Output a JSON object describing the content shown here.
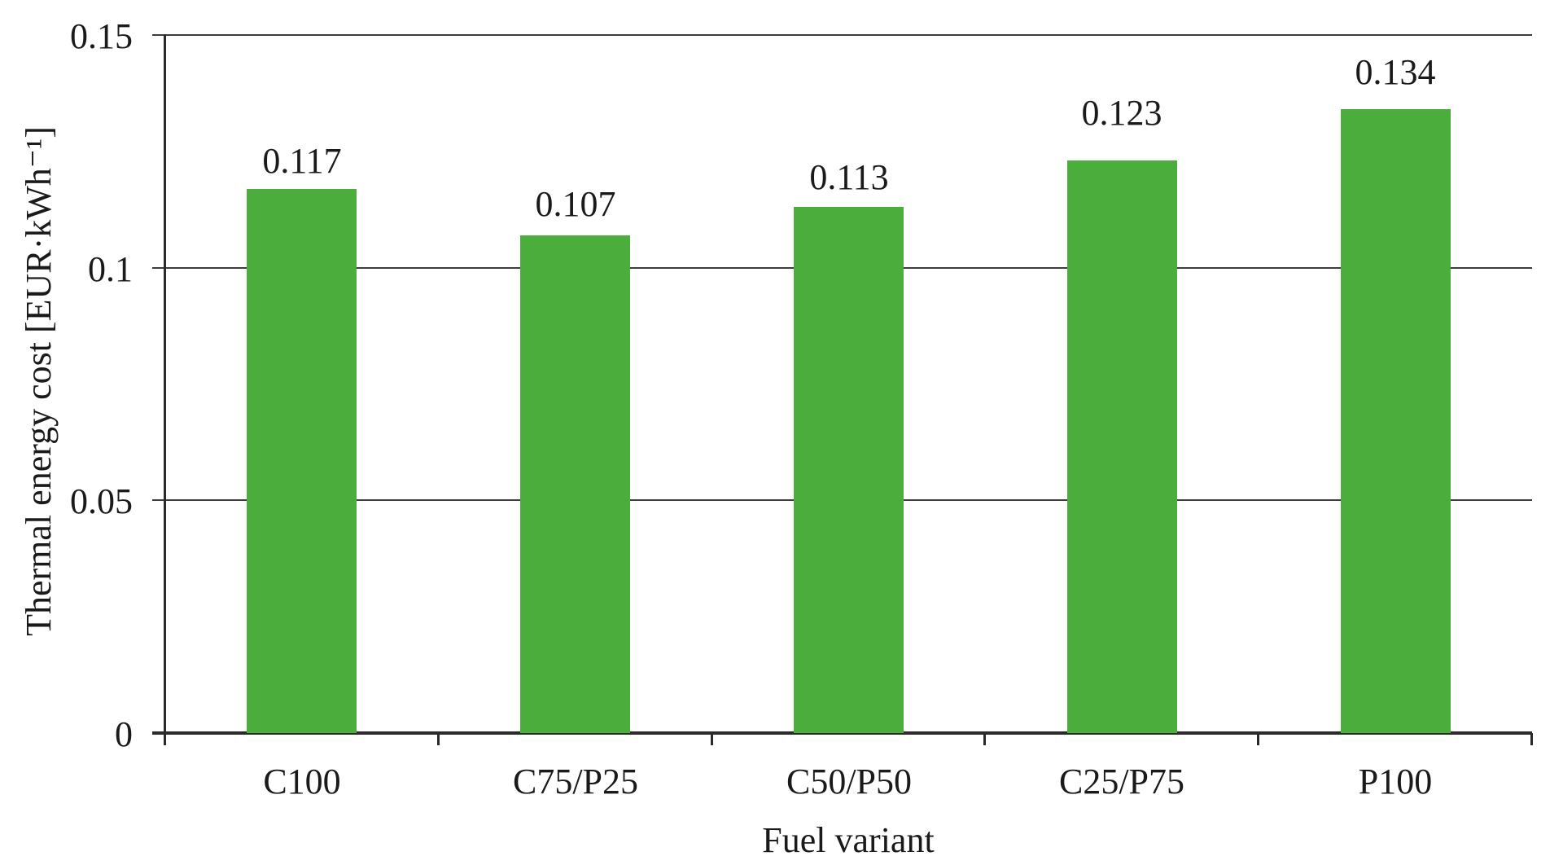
{
  "figure": {
    "background": "#ffffff"
  },
  "chart_data": {
    "type": "bar",
    "title": "",
    "categories": [
      "C100",
      "C75/P25",
      "C50/P50",
      "C25/P75",
      "P100"
    ],
    "values": [
      0.117,
      0.107,
      0.113,
      0.123,
      0.134
    ],
    "value_labels": [
      "0.117",
      "0.107",
      "0.113",
      "0.123",
      "0.134"
    ],
    "xlabel": "Fuel variant",
    "ylabel": "Thermal energy cost [EUR·kWh⁻¹]",
    "ylim": [
      0,
      0.15
    ],
    "yticks": [
      0,
      0.05,
      0.1,
      0.15
    ],
    "ytick_labels": [
      "0",
      "0.05",
      "0.1",
      "0.15"
    ],
    "grid": true,
    "legend": false,
    "bar_color": "#4aad3c",
    "axis_color": "#2a2a2a",
    "gridline_color": "#3c3c3c",
    "text_color": "#1a1a1a"
  }
}
